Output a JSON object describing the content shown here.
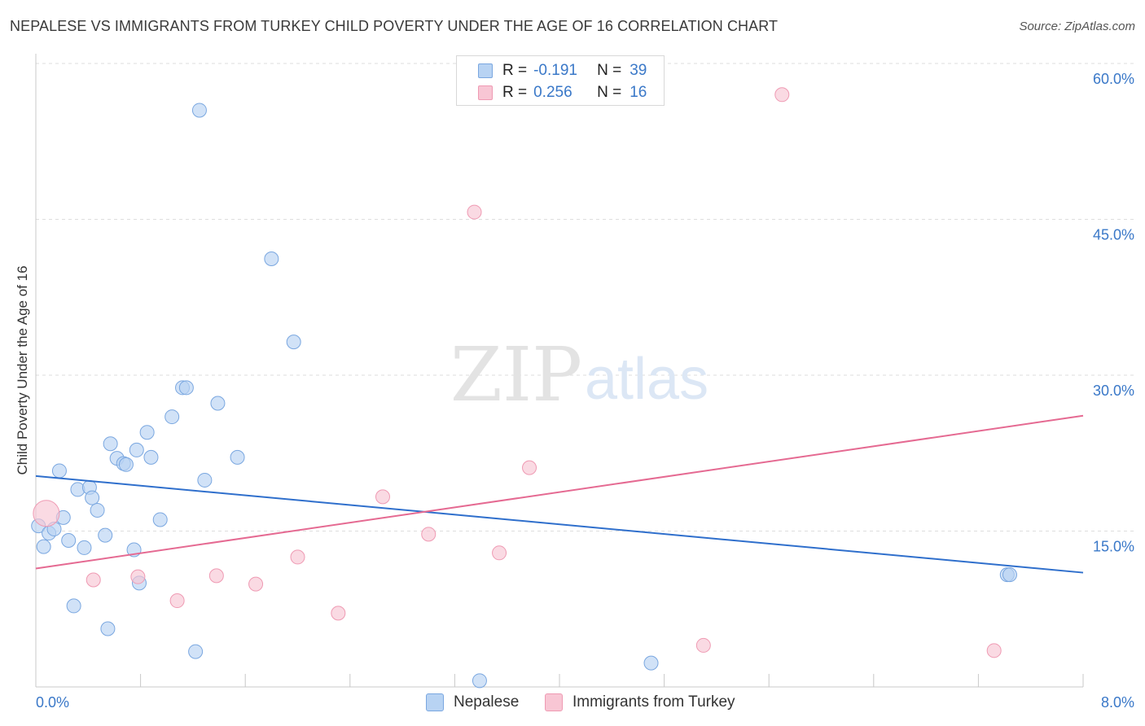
{
  "header": {
    "title": "NEPALESE VS IMMIGRANTS FROM TURKEY CHILD POVERTY UNDER THE AGE OF 16 CORRELATION CHART",
    "source": "Source: ZipAtlas.com"
  },
  "watermark": {
    "zip": "ZIP",
    "atlas": "atlas"
  },
  "legend": {
    "rows": [
      {
        "r_label": "R =",
        "r_value": "-0.191",
        "n_label": "N =",
        "n_value": "39"
      },
      {
        "r_label": "R =",
        "r_value": "0.256",
        "n_label": "N =",
        "n_value": "16"
      }
    ]
  },
  "colors": {
    "blue_fill": "#b8d3f3",
    "blue_stroke": "#7aa7e0",
    "blue_line": "#2f6fcc",
    "pink_fill": "#f8c6d4",
    "pink_stroke": "#ef9ab3",
    "pink_line": "#e56a92",
    "tick_label": "#3a78c8",
    "grid": "#dedede"
  },
  "chart_data": {
    "type": "scatter",
    "title": "NEPALESE VS IMMIGRANTS FROM TURKEY CHILD POVERTY UNDER THE AGE OF 16 CORRELATION CHART",
    "xlabel": "",
    "ylabel": "Child Poverty Under the Age of 16",
    "xlim": [
      0,
      8
    ],
    "ylim": [
      0,
      60
    ],
    "x_tick_labels": [
      "0.0%",
      "8.0%"
    ],
    "y_ticks": [
      15,
      30,
      45,
      60
    ],
    "y_tick_labels": [
      "15.0%",
      "30.0%",
      "45.0%",
      "60.0%"
    ],
    "series": [
      {
        "name": "Nepalese",
        "R": -0.191,
        "N": 39,
        "trend": {
          "x": [
            0,
            8
          ],
          "y": [
            20.3,
            11.0
          ]
        },
        "points": [
          {
            "x": 0.02,
            "y": 15.5
          },
          {
            "x": 0.06,
            "y": 13.5
          },
          {
            "x": 0.1,
            "y": 14.8
          },
          {
            "x": 0.14,
            "y": 15.2
          },
          {
            "x": 0.18,
            "y": 20.8
          },
          {
            "x": 0.21,
            "y": 16.3
          },
          {
            "x": 0.25,
            "y": 14.1
          },
          {
            "x": 0.29,
            "y": 7.8
          },
          {
            "x": 0.32,
            "y": 19.0
          },
          {
            "x": 0.37,
            "y": 13.4
          },
          {
            "x": 0.41,
            "y": 19.2
          },
          {
            "x": 0.43,
            "y": 18.2
          },
          {
            "x": 0.47,
            "y": 17.0
          },
          {
            "x": 0.53,
            "y": 14.6
          },
          {
            "x": 0.55,
            "y": 5.6
          },
          {
            "x": 0.57,
            "y": 23.4
          },
          {
            "x": 0.62,
            "y": 22.0
          },
          {
            "x": 0.67,
            "y": 21.5
          },
          {
            "x": 0.69,
            "y": 21.4
          },
          {
            "x": 0.75,
            "y": 13.2
          },
          {
            "x": 0.77,
            "y": 22.8
          },
          {
            "x": 0.79,
            "y": 10.0
          },
          {
            "x": 0.85,
            "y": 24.5
          },
          {
            "x": 0.88,
            "y": 22.1
          },
          {
            "x": 0.95,
            "y": 16.1
          },
          {
            "x": 1.04,
            "y": 26.0
          },
          {
            "x": 1.12,
            "y": 28.8
          },
          {
            "x": 1.15,
            "y": 28.8
          },
          {
            "x": 1.22,
            "y": 3.4
          },
          {
            "x": 1.25,
            "y": 55.5
          },
          {
            "x": 1.29,
            "y": 19.9
          },
          {
            "x": 1.39,
            "y": 27.3
          },
          {
            "x": 1.54,
            "y": 22.1
          },
          {
            "x": 1.8,
            "y": 41.2
          },
          {
            "x": 1.97,
            "y": 33.2
          },
          {
            "x": 3.39,
            "y": 0.6
          },
          {
            "x": 4.7,
            "y": 2.3
          },
          {
            "x": 7.42,
            "y": 10.8
          },
          {
            "x": 7.44,
            "y": 10.8
          }
        ]
      },
      {
        "name": "Immigrants from Turkey",
        "R": 0.256,
        "N": 16,
        "trend": {
          "x": [
            0,
            8
          ],
          "y": [
            11.4,
            26.1
          ]
        },
        "points": [
          {
            "x": 0.08,
            "y": 16.7,
            "big": true
          },
          {
            "x": 0.44,
            "y": 10.3
          },
          {
            "x": 0.78,
            "y": 10.6
          },
          {
            "x": 1.08,
            "y": 8.3
          },
          {
            "x": 1.38,
            "y": 10.7
          },
          {
            "x": 1.68,
            "y": 9.9
          },
          {
            "x": 2.0,
            "y": 12.5
          },
          {
            "x": 2.31,
            "y": 7.1
          },
          {
            "x": 2.65,
            "y": 18.3
          },
          {
            "x": 3.0,
            "y": 14.7
          },
          {
            "x": 3.35,
            "y": 45.7
          },
          {
            "x": 3.54,
            "y": 12.9
          },
          {
            "x": 3.77,
            "y": 21.1
          },
          {
            "x": 5.1,
            "y": 4.0
          },
          {
            "x": 5.7,
            "y": 57.0
          },
          {
            "x": 7.32,
            "y": 3.5
          }
        ]
      }
    ]
  }
}
